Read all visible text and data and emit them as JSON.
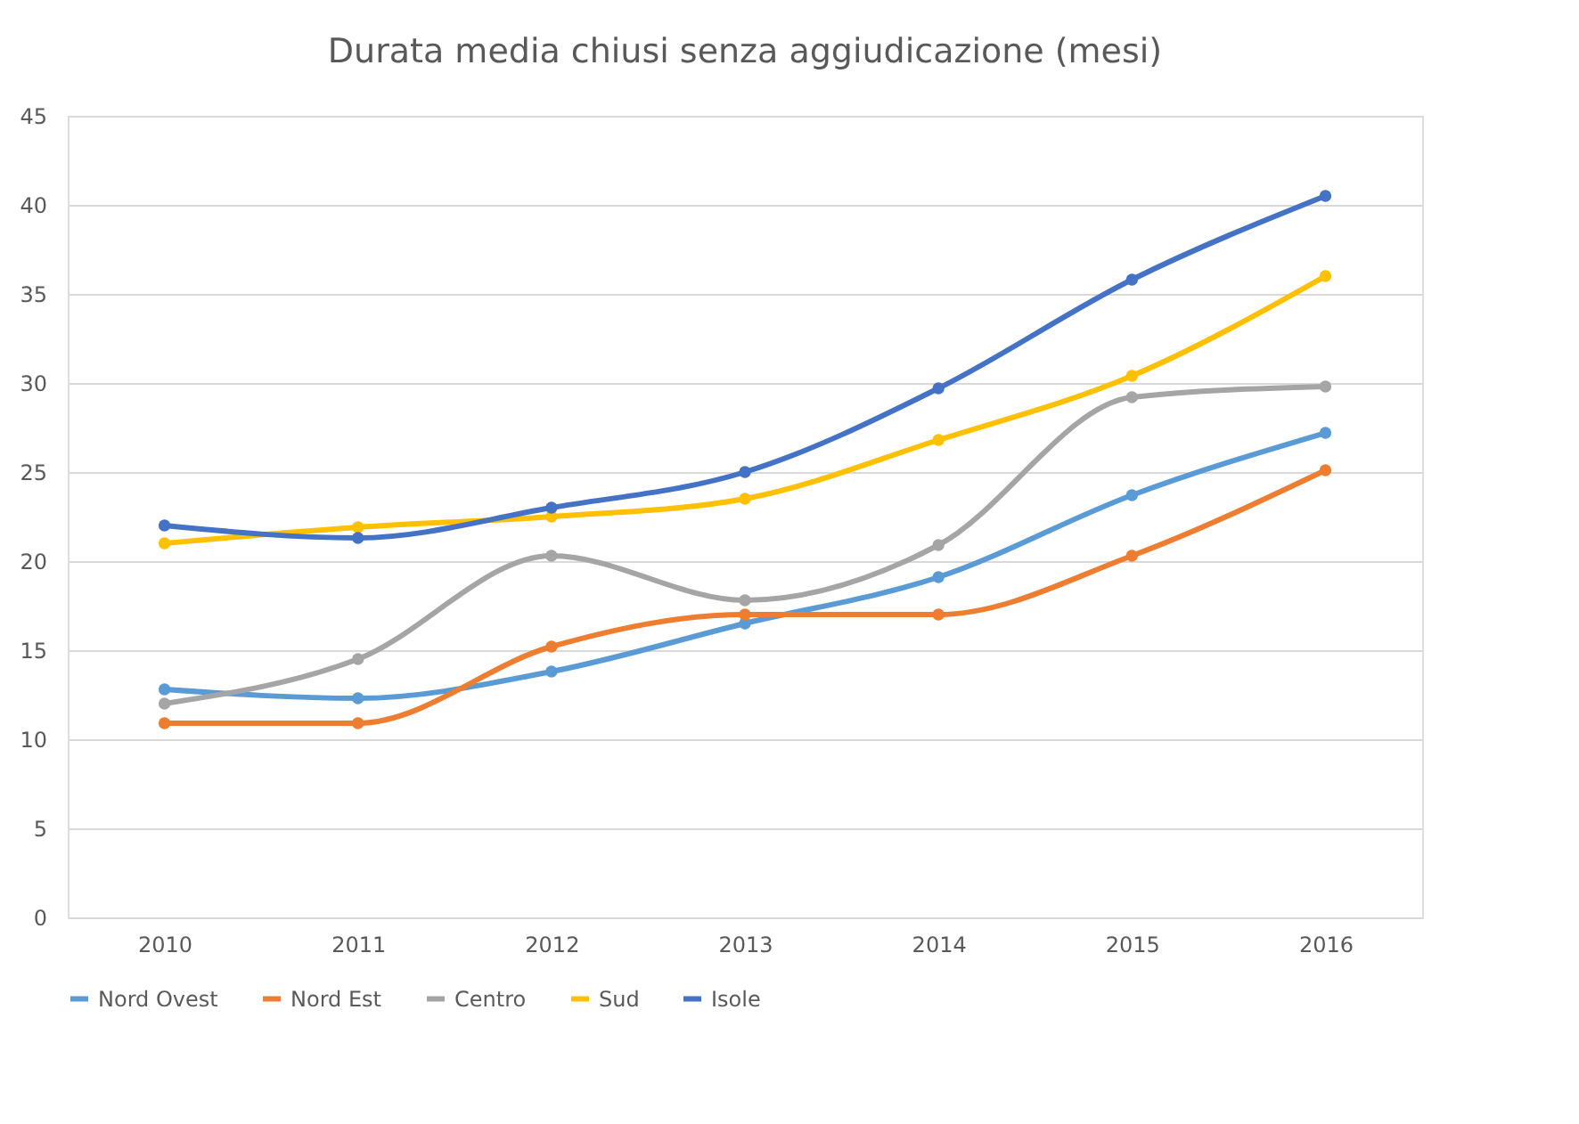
{
  "chart_data": {
    "type": "line",
    "title": "Durata media chiusi senza aggiudicazione (mesi)",
    "categories": [
      "2010",
      "2011",
      "2012",
      "2013",
      "2014",
      "2015",
      "2016"
    ],
    "series": [
      {
        "name": "Nord Ovest",
        "color": "#5b9bd5",
        "values": [
          12.8,
          12.3,
          13.8,
          16.5,
          19.1,
          23.7,
          27.2
        ]
      },
      {
        "name": "Nord Est",
        "color": "#ed7d31",
        "values": [
          10.9,
          10.9,
          15.2,
          17.0,
          17.0,
          20.3,
          25.1
        ]
      },
      {
        "name": "Centro",
        "color": "#a5a5a5",
        "values": [
          12.0,
          14.5,
          20.3,
          17.8,
          20.9,
          29.2,
          29.8
        ]
      },
      {
        "name": "Sud",
        "color": "#ffc000",
        "values": [
          21.0,
          21.9,
          22.5,
          23.5,
          26.8,
          30.4,
          36.0
        ]
      },
      {
        "name": "Isole",
        "color": "#4472c4",
        "values": [
          22.0,
          21.3,
          23.0,
          25.0,
          29.7,
          35.8,
          40.5
        ]
      }
    ],
    "ylim": [
      0,
      45
    ],
    "yticks": [
      0,
      5,
      10,
      15,
      20,
      25,
      30,
      35,
      40,
      45
    ],
    "grid": "y",
    "legend": "bottom",
    "marker": "circle",
    "line_style": "solid"
  }
}
